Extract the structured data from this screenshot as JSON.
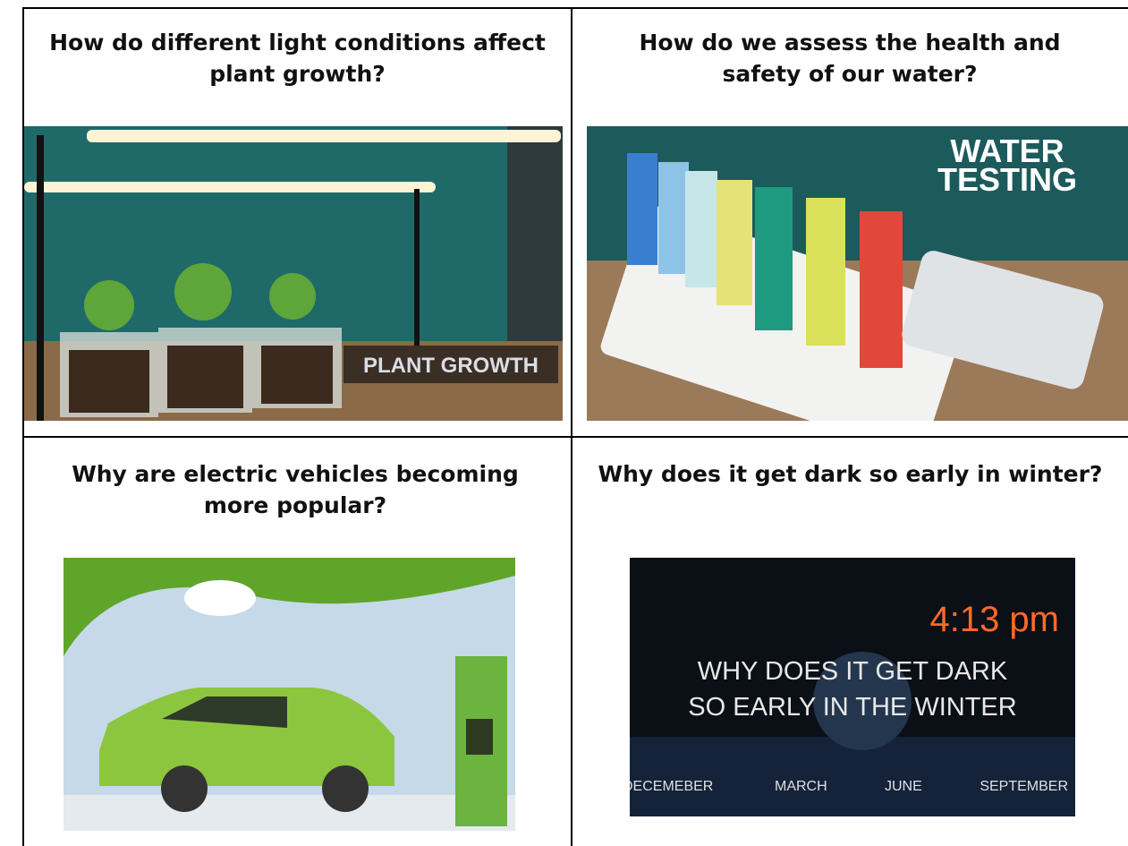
{
  "cells": [
    {
      "question": "How do different light conditions affect plant growth?",
      "image": {
        "labels": [
          "PLANT GROWTH"
        ]
      }
    },
    {
      "question": "How do we assess the health and safety of our water?",
      "image": {
        "labels": [
          "WATER",
          "TESTING"
        ]
      }
    },
    {
      "question": "Why are electric vehicles becoming more popular?",
      "image": {
        "labels": []
      }
    },
    {
      "question": "Why does it get dark so early in winter?",
      "image": {
        "labels": [
          "4:13 pm",
          "WHY DOES IT GET DARK",
          "SO EARLY IN THE WINTER",
          "DECEMEBER",
          "MARCH",
          "JUNE",
          "SEPTEMBER"
        ]
      }
    }
  ]
}
